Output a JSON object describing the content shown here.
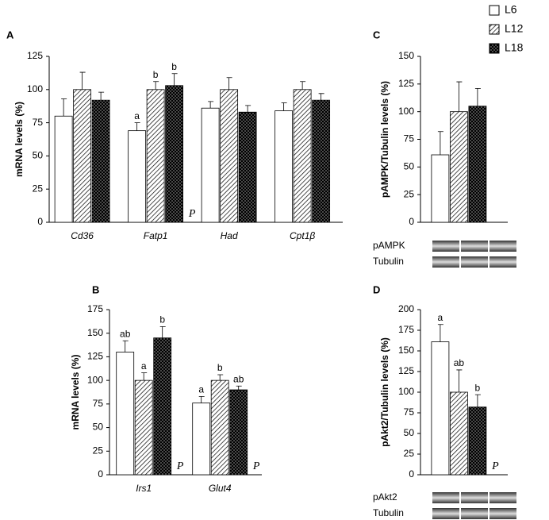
{
  "legend": [
    {
      "name": "L6",
      "fill": "white"
    },
    {
      "name": "L12",
      "fill": "hatch"
    },
    {
      "name": "L18",
      "fill": "dots"
    }
  ],
  "chart_data": [
    {
      "type": "bar",
      "panel_label": "A",
      "y_label": "mRNA levels (%)",
      "categories": [
        "Cd36",
        "Fatp1",
        "Had",
        "Cpt1β"
      ],
      "category_notes": [
        null,
        "P",
        null,
        null
      ],
      "series": [
        {
          "values": [
            80,
            69,
            86,
            84
          ],
          "errors": [
            13,
            6,
            5,
            6
          ],
          "letters": [
            null,
            "a",
            null,
            null
          ]
        },
        {
          "values": [
            100,
            100,
            100,
            100
          ],
          "errors": [
            13,
            6,
            9,
            6
          ],
          "letters": [
            null,
            "b",
            null,
            null
          ]
        },
        {
          "values": [
            92,
            103,
            83,
            92
          ],
          "errors": [
            6,
            9,
            5,
            5
          ],
          "letters": [
            null,
            "b",
            null,
            null
          ]
        }
      ],
      "ylim": [
        0,
        125
      ],
      "yticks": [
        0,
        25,
        50,
        75,
        100,
        125
      ]
    },
    {
      "type": "bar",
      "panel_label": "B",
      "y_label": "mRNA levels (%)",
      "categories": [
        "Irs1",
        "Glut4"
      ],
      "category_notes": [
        "P",
        "P"
      ],
      "series": [
        {
          "values": [
            130,
            76
          ],
          "errors": [
            12,
            7
          ],
          "letters": [
            "ab",
            "a"
          ]
        },
        {
          "values": [
            100,
            100
          ],
          "errors": [
            8,
            6
          ],
          "letters": [
            "a",
            "b"
          ]
        },
        {
          "values": [
            145,
            90
          ],
          "errors": [
            12,
            4
          ],
          "letters": [
            "b",
            "ab"
          ]
        }
      ],
      "ylim": [
        0,
        175
      ],
      "yticks": [
        0,
        25,
        50,
        75,
        100,
        125,
        150,
        175
      ]
    },
    {
      "type": "bar",
      "panel_label": "C",
      "y_label": "pAMPK/Tubulin levels (%)",
      "categories": [
        null
      ],
      "category_notes": [
        null
      ],
      "series": [
        {
          "values": [
            61
          ],
          "errors": [
            21
          ],
          "letters": [
            null
          ]
        },
        {
          "values": [
            100
          ],
          "errors": [
            27
          ],
          "letters": [
            null
          ]
        },
        {
          "values": [
            105
          ],
          "errors": [
            16
          ],
          "letters": [
            null
          ]
        }
      ],
      "ylim": [
        0,
        150
      ],
      "yticks": [
        0,
        25,
        50,
        75,
        100,
        125,
        150
      ],
      "blot_rows": [
        "pAMPK",
        "Tubulin"
      ]
    },
    {
      "type": "bar",
      "panel_label": "D",
      "y_label": "pAkt2/Tubulin levels (%)",
      "categories": [
        null
      ],
      "category_notes": [
        "P"
      ],
      "series": [
        {
          "values": [
            161
          ],
          "errors": [
            21
          ],
          "letters": [
            "a"
          ]
        },
        {
          "values": [
            100
          ],
          "errors": [
            27
          ],
          "letters": [
            "ab"
          ]
        },
        {
          "values": [
            82
          ],
          "errors": [
            15
          ],
          "letters": [
            "b"
          ]
        }
      ],
      "ylim": [
        0,
        200
      ],
      "yticks": [
        0,
        25,
        50,
        75,
        100,
        125,
        150,
        175,
        200
      ],
      "blot_rows": [
        "pAkt2",
        "Tubulin"
      ]
    }
  ]
}
